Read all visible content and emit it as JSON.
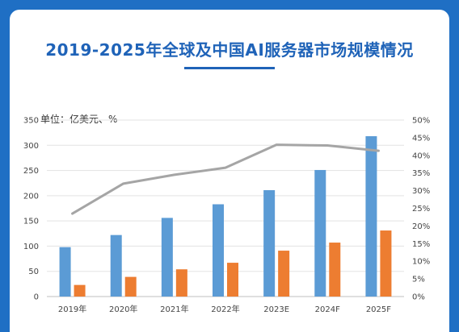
{
  "page": {
    "title": "2019-2025年全球及中国AI服务器市场规模情况",
    "unit_label": "单位：亿美元、%",
    "background_color": "#1f6fc4",
    "title_color": "#1f63b8"
  },
  "chart_data": {
    "type": "bar",
    "title": "2019-2025年全球及中国AI服务器市场规模情况",
    "categories": [
      "2019年",
      "2020年",
      "2021年",
      "2022年",
      "2023E",
      "2024F",
      "2025F"
    ],
    "series": [
      {
        "type": "bar",
        "axis": "left",
        "color": "#5b9bd5",
        "values": [
          98,
          122,
          156,
          183,
          211,
          251,
          318
        ]
      },
      {
        "type": "bar",
        "axis": "left",
        "color": "#ed7d31",
        "values": [
          23,
          39,
          54,
          67,
          91,
          107,
          131
        ]
      },
      {
        "type": "line",
        "axis": "right",
        "color": "#a5a5a5",
        "values": [
          23.5,
          32,
          34.5,
          36.5,
          43,
          42.8,
          41.3
        ]
      }
    ],
    "left_axis": {
      "min": 0,
      "max": 350,
      "ticks": [
        "0",
        "50",
        "100",
        "150",
        "200",
        "250",
        "300",
        "350"
      ]
    },
    "right_axis": {
      "min": 0,
      "max": 50,
      "ticks": [
        "0%",
        "5%",
        "10%",
        "15%",
        "20%",
        "25%",
        "30%",
        "35%",
        "40%",
        "45%",
        "50%"
      ]
    },
    "grid": true
  }
}
